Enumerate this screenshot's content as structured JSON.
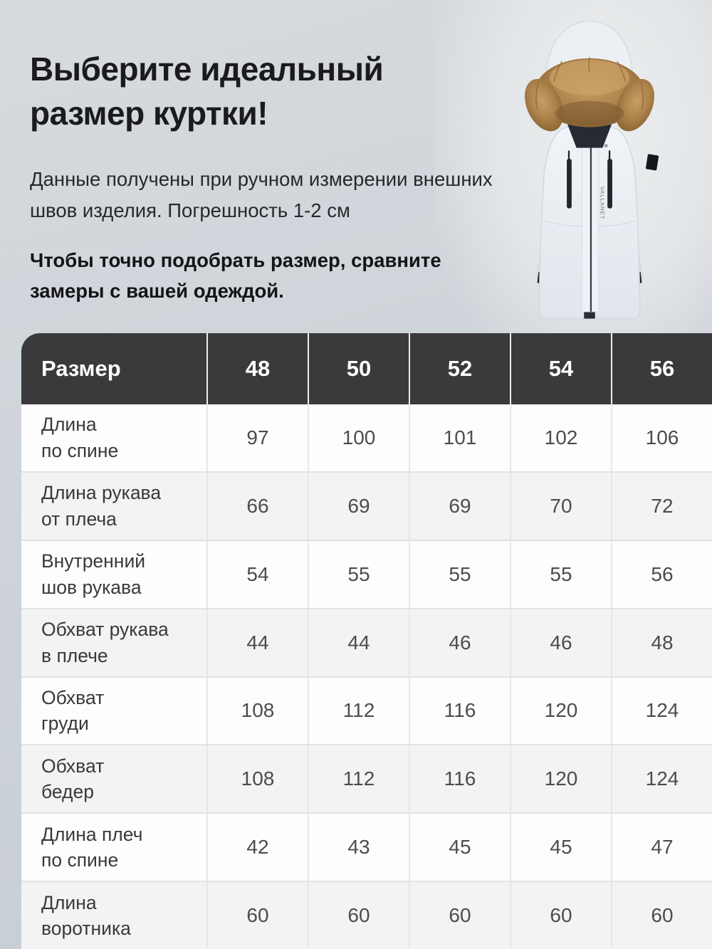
{
  "page": {
    "title_line1": "Выберите идеальный",
    "title_line2": "размер куртки!",
    "subtitle": "Данные получены при ручном измерении внешних швов изделия. Погрешность 1-2 см",
    "note": "Чтобы точно подобрать размер, сравните замеры с вашей одеждой."
  },
  "jacket": {
    "description": "белая зимняя парка с меховым капюшоном",
    "brand_text": "VALLANET"
  },
  "size_table": {
    "header_label": "Размер",
    "sizes": [
      "48",
      "50",
      "52",
      "54",
      "56"
    ],
    "rows": [
      {
        "label": "Длина\nпо спине",
        "values": [
          "97",
          "100",
          "101",
          "102",
          "106"
        ]
      },
      {
        "label": "Длина рукава\nот плеча",
        "values": [
          "66",
          "69",
          "69",
          "70",
          "72"
        ]
      },
      {
        "label": "Внутренний\nшов рукава",
        "values": [
          "54",
          "55",
          "55",
          "55",
          "56"
        ]
      },
      {
        "label": "Обхват рукава\nв плече",
        "values": [
          "44",
          "44",
          "46",
          "46",
          "48"
        ]
      },
      {
        "label": "Обхват\nгруди",
        "values": [
          "108",
          "112",
          "116",
          "120",
          "124"
        ]
      },
      {
        "label": "Обхват\nбедер",
        "values": [
          "108",
          "112",
          "116",
          "120",
          "124"
        ]
      },
      {
        "label": "Длина плеч\nпо спине",
        "values": [
          "42",
          "43",
          "45",
          "45",
          "47"
        ]
      },
      {
        "label": "Длина\nворотника",
        "values": [
          "60",
          "60",
          "60",
          "60",
          "60"
        ]
      }
    ]
  },
  "colors": {
    "page_background": "#cfd4da",
    "table_header_bg": "#3a3a3d",
    "table_header_text": "#ffffff",
    "row_alt_bg": "#f3f3f5",
    "fur_brown": "#b08550",
    "jacket_shell": "#edf1f5"
  }
}
